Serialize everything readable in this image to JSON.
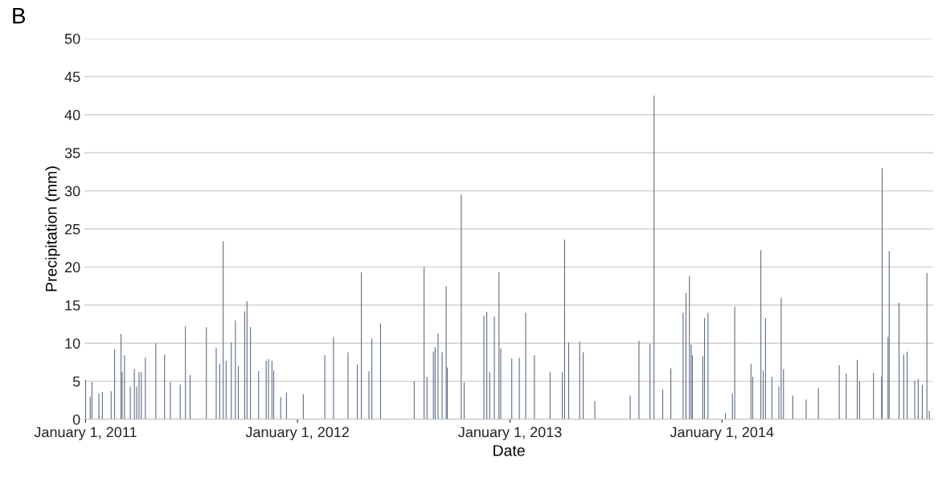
{
  "chart_data": {
    "type": "bar",
    "title": "B",
    "xlabel": "Date",
    "ylabel": "Precipitation (mm)",
    "x": [
      "2011-01-01",
      "2011-01-09",
      "2011-01-12",
      "2011-01-24",
      "2011-01-30",
      "2011-02-14",
      "2011-02-20",
      "2011-03-03",
      "2011-03-05",
      "2011-03-09",
      "2011-03-19",
      "2011-03-26",
      "2011-03-30",
      "2011-04-03",
      "2011-04-07",
      "2011-04-14",
      "2011-05-02",
      "2011-05-17",
      "2011-05-27",
      "2011-06-13",
      "2011-06-22",
      "2011-06-30",
      "2011-07-28",
      "2011-08-14",
      "2011-08-20",
      "2011-08-26",
      "2011-08-31",
      "2011-09-09",
      "2011-09-16",
      "2011-09-21",
      "2011-10-02",
      "2011-10-06",
      "2011-10-12",
      "2011-10-26",
      "2011-11-08",
      "2011-11-12",
      "2011-11-18",
      "2011-11-21",
      "2011-12-03",
      "2011-12-13",
      "2012-01-11",
      "2012-02-17",
      "2012-03-03",
      "2012-03-28",
      "2012-04-13",
      "2012-04-20",
      "2012-05-03",
      "2012-05-08",
      "2012-05-23",
      "2012-07-20",
      "2012-08-06",
      "2012-08-11",
      "2012-08-22",
      "2012-08-25",
      "2012-08-30",
      "2012-09-06",
      "2012-09-13",
      "2012-09-15",
      "2012-10-09",
      "2012-10-14",
      "2012-11-17",
      "2012-11-22",
      "2012-11-27",
      "2012-12-05",
      "2012-12-13",
      "2012-12-16",
      "2013-01-04",
      "2013-01-17",
      "2013-01-28",
      "2013-02-12",
      "2013-03-11",
      "2013-04-01",
      "2013-04-05",
      "2013-04-12",
      "2013-05-01",
      "2013-05-07",
      "2013-05-27",
      "2013-07-27",
      "2013-08-11",
      "2013-08-30",
      "2013-09-06",
      "2013-09-21",
      "2013-10-05",
      "2013-10-26",
      "2013-10-31",
      "2013-11-06",
      "2013-11-09",
      "2013-11-11",
      "2013-11-29",
      "2013-12-02",
      "2013-12-08",
      "2014-01-07",
      "2014-01-19",
      "2014-01-23",
      "2014-02-20",
      "2014-02-23",
      "2014-03-09",
      "2014-03-13",
      "2014-03-17",
      "2014-03-28",
      "2014-04-09",
      "2014-04-13",
      "2014-04-17",
      "2014-05-03",
      "2014-05-26",
      "2014-06-16",
      "2014-07-22",
      "2014-08-03",
      "2014-08-22",
      "2014-08-26",
      "2014-09-19",
      "2014-10-03",
      "2014-10-04",
      "2014-10-14",
      "2014-10-16",
      "2014-11-02",
      "2014-11-10",
      "2014-11-16",
      "2014-11-29",
      "2014-12-05",
      "2014-12-12",
      "2014-12-20",
      "2014-12-24"
    ],
    "values": [
      5.2,
      3.0,
      4.9,
      3.4,
      3.6,
      3.7,
      9.2,
      11.2,
      6.2,
      8.4,
      4.3,
      6.6,
      4.3,
      6.2,
      6.2,
      8.1,
      10.0,
      8.5,
      4.9,
      4.6,
      12.2,
      5.8,
      12.1,
      9.4,
      7.3,
      23.4,
      7.7,
      10.1,
      13.0,
      7.0,
      14.2,
      15.5,
      12.1,
      6.3,
      7.7,
      7.9,
      7.7,
      6.4,
      2.9,
      3.5,
      3.3,
      8.4,
      10.8,
      8.8,
      7.2,
      19.3,
      6.3,
      10.6,
      12.6,
      5.0,
      20.0,
      5.6,
      8.9,
      9.5,
      11.3,
      8.8,
      17.5,
      6.8,
      29.5,
      4.9,
      13.6,
      14.1,
      6.2,
      13.5,
      19.3,
      9.3,
      8.0,
      8.1,
      14.0,
      8.4,
      6.2,
      6.2,
      23.6,
      10.1,
      10.2,
      8.8,
      2.4,
      3.1,
      10.3,
      9.9,
      42.5,
      3.9,
      6.7,
      14.0,
      16.6,
      18.8,
      9.8,
      8.4,
      8.3,
      13.3,
      14.0,
      0.8,
      3.4,
      14.8,
      7.3,
      5.6,
      22.2,
      6.4,
      13.3,
      5.6,
      4.3,
      15.9,
      6.6,
      3.1,
      2.6,
      4.1,
      7.1,
      6.0,
      7.8,
      5.0,
      6.1,
      5.6,
      33.0,
      10.8,
      22.1,
      15.3,
      8.5,
      8.9,
      5.1,
      5.3,
      4.5,
      19.2,
      1.1
    ],
    "color": "#5b6b82",
    "xlim": [
      "2010-12-30",
      "2014-12-31"
    ],
    "xticks": [
      {
        "value": "2011-01-01",
        "label": "January 1, 2011"
      },
      {
        "value": "2012-01-01",
        "label": "January 1, 2012"
      },
      {
        "value": "2013-01-01",
        "label": "January 1, 2013"
      },
      {
        "value": "2014-01-01",
        "label": "January 1, 2014"
      }
    ],
    "ylim": [
      0,
      50
    ],
    "yticks": [
      0,
      5,
      10,
      15,
      20,
      25,
      30,
      35,
      40,
      45,
      50
    ],
    "grid": "y"
  }
}
